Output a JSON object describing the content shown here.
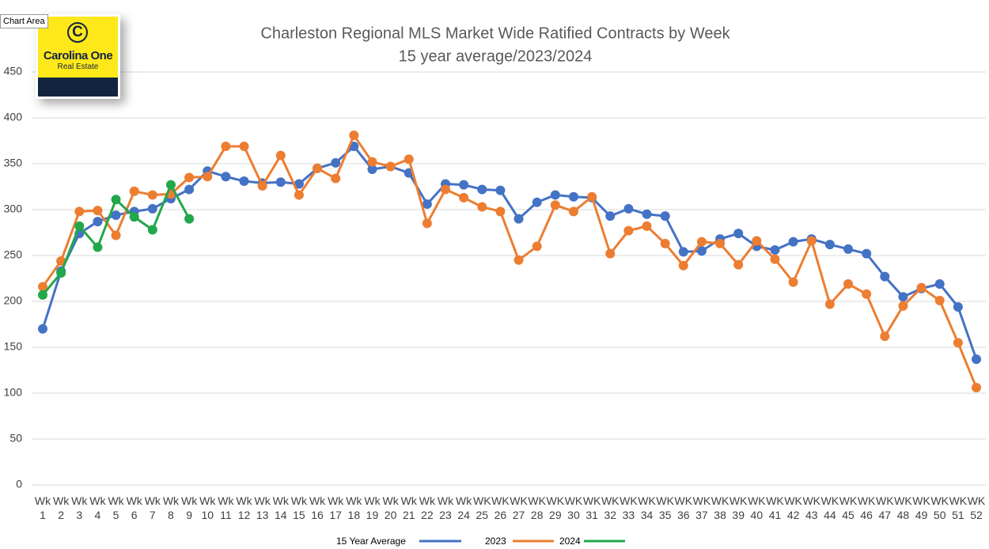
{
  "tooltip": "Chart Area",
  "logo": {
    "name": "Carolina One",
    "tagline": "Real Estate"
  },
  "chart_data": {
    "type": "line",
    "title": "Charleston Regional MLS Market Wide Ratified Contracts by Week",
    "subtitle": "15 year average/2023/2024",
    "categories": [
      "Wk 1",
      "Wk 2",
      "Wk 3",
      "Wk 4",
      "Wk 5",
      "Wk 6",
      "Wk 7",
      "Wk 8",
      "Wk 9",
      "Wk 10",
      "Wk 11",
      "Wk 12",
      "Wk 13",
      "Wk 14",
      "Wk 15",
      "Wk 16",
      "Wk 17",
      "Wk 18",
      "Wk 19",
      "Wk 20",
      "Wk 21",
      "Wk 22",
      "Wk 23",
      "Wk 24",
      "WK 25",
      "WK 26",
      "WK 27",
      "WK 28",
      "WK 29",
      "WK 30",
      "WK 31",
      "WK 32",
      "WK 33",
      "WK 34",
      "WK 35",
      "WK 36",
      "WK 37",
      "WK 38",
      "WK 39",
      "WK 40",
      "WK 41",
      "WK 42",
      "WK 43",
      "WK 44",
      "WK 45",
      "WK 46",
      "WK 47",
      "WK 48",
      "WK 49",
      "WK 50",
      "WK 51",
      "WK 52"
    ],
    "series": [
      {
        "name": "15 Year Average",
        "color": "#4472c4",
        "values": [
          170,
          233,
          274,
          287,
          294,
          298,
          301,
          312,
          322,
          342,
          336,
          331,
          329,
          330,
          328,
          345,
          351,
          369,
          344,
          347,
          340,
          306,
          328,
          327,
          322,
          321,
          290,
          308,
          316,
          314,
          313,
          293,
          301,
          295,
          293,
          254,
          255,
          268,
          274,
          260,
          256,
          265,
          268,
          262,
          257,
          252,
          227,
          205,
          214,
          219,
          194,
          137
        ]
      },
      {
        "name": "2023",
        "color": "#ed7d31",
        "values": [
          216,
          244,
          298,
          299,
          272,
          320,
          316,
          317,
          335,
          336,
          369,
          369,
          326,
          359,
          316,
          345,
          334,
          381,
          352,
          347,
          355,
          285,
          322,
          313,
          303,
          298,
          245,
          260,
          305,
          298,
          314,
          252,
          277,
          282,
          263,
          239,
          265,
          263,
          240,
          266,
          246,
          221,
          266,
          197,
          219,
          208,
          162,
          195,
          215,
          201,
          155,
          106
        ]
      },
      {
        "name": "2024",
        "color": "#21a84a",
        "values": [
          207,
          231,
          282,
          259,
          311,
          292,
          278,
          327,
          290,
          null,
          null,
          null,
          null,
          null,
          null,
          null,
          null,
          null,
          null,
          null,
          null,
          null,
          null,
          null,
          null,
          null,
          null,
          null,
          null,
          null,
          null,
          null,
          null,
          null,
          null,
          null,
          null,
          null,
          null,
          null,
          null,
          null,
          null,
          null,
          null,
          null,
          null,
          null,
          null,
          null,
          null,
          null
        ]
      }
    ],
    "ylim": [
      0,
      450
    ],
    "yticks": [
      0,
      50,
      100,
      150,
      200,
      250,
      300,
      350,
      400,
      450
    ],
    "grid": true,
    "legend": "bottom"
  }
}
